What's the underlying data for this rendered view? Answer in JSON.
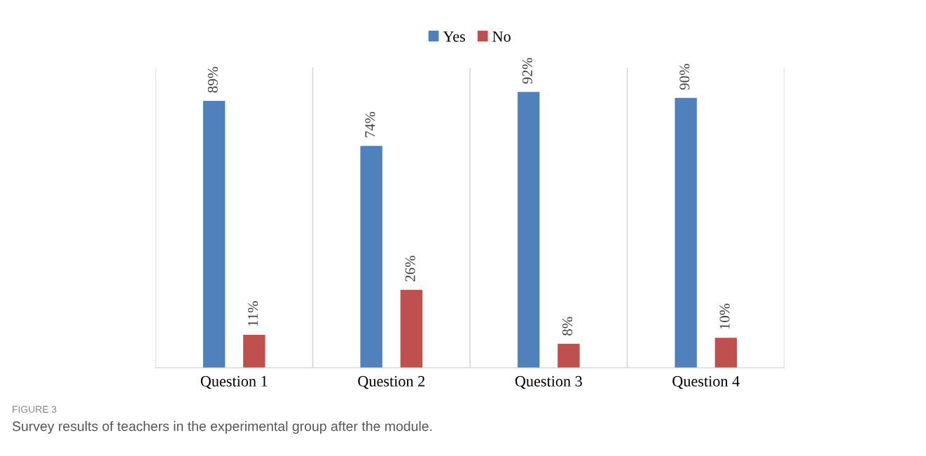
{
  "chart_data": {
    "type": "bar",
    "categories": [
      "Question 1",
      "Question 2",
      "Question 3",
      "Question 4"
    ],
    "series": [
      {
        "name": "Yes",
        "color": "#4f81bd",
        "values": [
          89,
          74,
          92,
          90
        ],
        "value_labels": [
          "89%",
          "74%",
          "92%",
          "90%"
        ]
      },
      {
        "name": "No",
        "color": "#c0504d",
        "values": [
          11,
          26,
          8,
          10
        ],
        "value_labels": [
          "11%",
          "26%",
          "8%",
          "10%"
        ]
      }
    ],
    "ylim": [
      0,
      100
    ],
    "tick_labels": "x",
    "grid": "x",
    "legend": "top",
    "annotations": [
      "FIGURE 3",
      "Survey results of teachers in the experimental group after the module."
    ]
  }
}
